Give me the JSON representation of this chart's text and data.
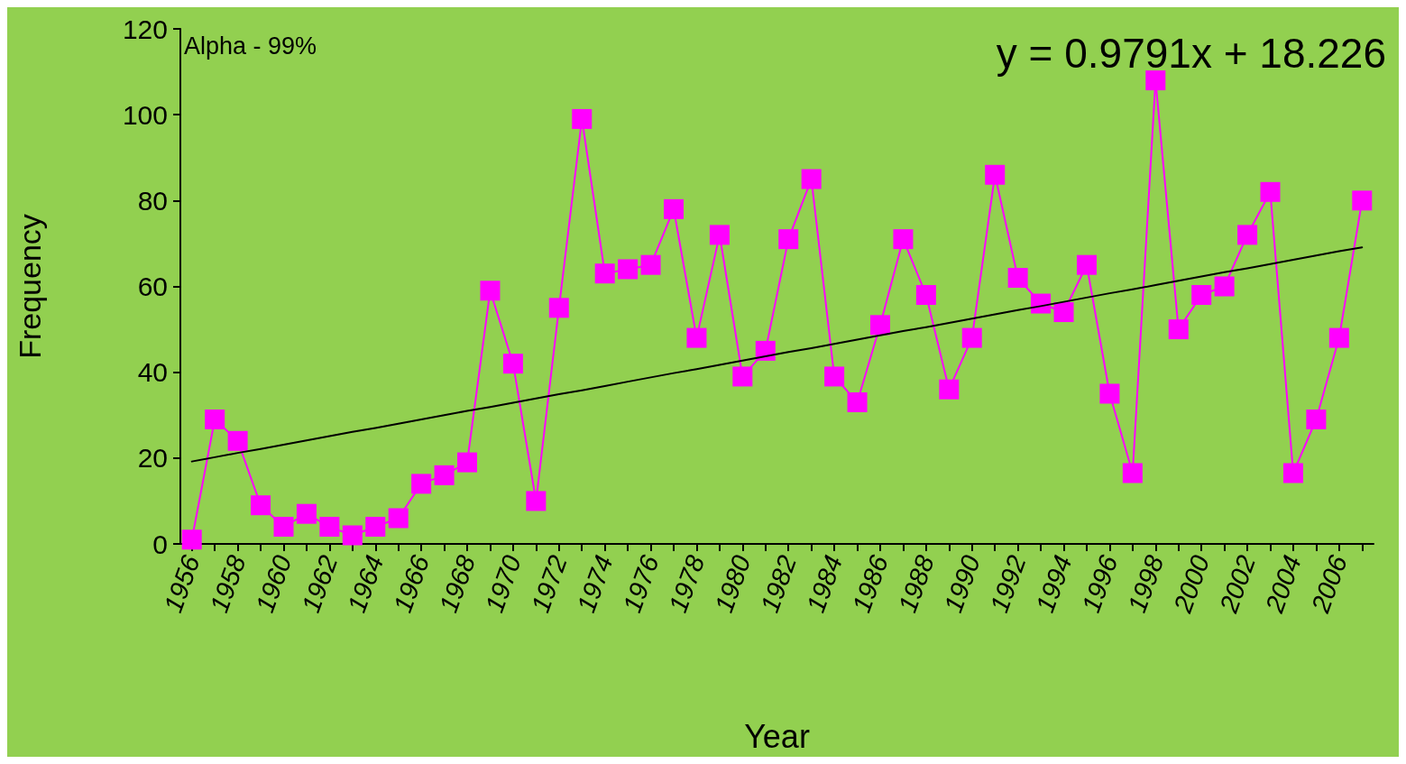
{
  "chart_data": {
    "type": "line",
    "xlabel": "Year",
    "ylabel": "Frequency",
    "categories": [
      "1956",
      null,
      "1958",
      null,
      "1960",
      null,
      "1962",
      null,
      "1964",
      null,
      "1966",
      null,
      "1968",
      null,
      "1970",
      null,
      "1972",
      null,
      "1974",
      null,
      "1976",
      null,
      "1978",
      null,
      "1980",
      null,
      "1982",
      null,
      "1984",
      null,
      "1986",
      null,
      "1988",
      null,
      "1990",
      null,
      "1992",
      null,
      "1994",
      null,
      "1996",
      null,
      "1998",
      null,
      "2000",
      null,
      "2002",
      null,
      "2004",
      null,
      "2006",
      null
    ],
    "series": [
      {
        "color": "#ff00ff",
        "marker": "square",
        "values": [
          1,
          29,
          24,
          9,
          4,
          7,
          4,
          2,
          4,
          6,
          14,
          16,
          19,
          59,
          42,
          10,
          55,
          99,
          63,
          64,
          65,
          78,
          48,
          72,
          39,
          45,
          71,
          85,
          39,
          33,
          51,
          71,
          58,
          36,
          48,
          86,
          62,
          56,
          54,
          65,
          35,
          16.5,
          108,
          50,
          58,
          60,
          72,
          82,
          16.5,
          29,
          48,
          80
        ]
      },
      {
        "color": "#000000",
        "marker": "none",
        "values": [
          19.2,
          20.2,
          21.2,
          22.1,
          23.1,
          24.1,
          25.1,
          26.1,
          27.0,
          28.0,
          29.0,
          30.0,
          31.0,
          31.9,
          32.9,
          33.9,
          34.9,
          35.8,
          36.8,
          37.8,
          38.8,
          39.8,
          40.7,
          41.7,
          42.7,
          43.7,
          44.7,
          45.6,
          46.6,
          47.6,
          48.6,
          49.6,
          50.5,
          51.5,
          52.5,
          53.5,
          54.5,
          55.4,
          56.4,
          57.4,
          58.4,
          59.3,
          60.3,
          61.3,
          62.3,
          63.3,
          64.2,
          65.2,
          66.2,
          67.2,
          68.2,
          69.1
        ]
      }
    ],
    "ylim": [
      0,
      120
    ],
    "yticks": [
      0,
      20,
      40,
      60,
      80,
      100,
      120
    ],
    "grid": false,
    "line_style": "solid",
    "annotations": [
      "Alpha - 99%",
      "y = 0.9791x + 18.226"
    ]
  }
}
